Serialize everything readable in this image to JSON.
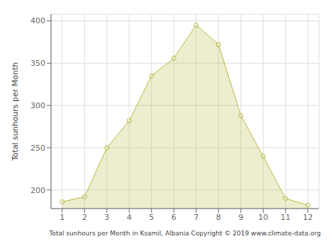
{
  "chart_data": {
    "type": "area",
    "x": [
      1,
      2,
      3,
      4,
      5,
      6,
      7,
      8,
      9,
      10,
      11,
      12
    ],
    "values": [
      186,
      192,
      250,
      282,
      335,
      356,
      395,
      372,
      288,
      240,
      190,
      182
    ],
    "color": "#b8b840",
    "marker": "circle",
    "xlabel": "Total sunhours per Month in Ksamil, Albania Copyright © 2019 www.climate-data.org",
    "ylabel": "Total sunhours per Month",
    "xlim": [
      0.5,
      12.5
    ],
    "ylim": [
      178,
      408
    ],
    "xticks": [
      1,
      2,
      3,
      4,
      5,
      6,
      7,
      8,
      9,
      10,
      11,
      12
    ],
    "yticks": [
      200,
      250,
      300,
      350,
      400
    ],
    "grid": true
  }
}
